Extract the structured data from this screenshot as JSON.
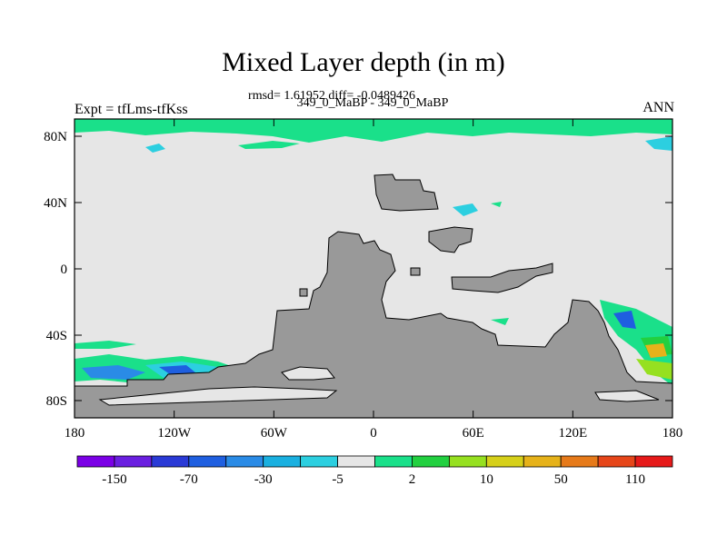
{
  "title": "Mixed Layer depth (in m)",
  "stats_line": "rmsd= 1.61952 diff= -0.0489426",
  "subtitle": "349_0_MaBP - 349_0_MaBP",
  "left_label": "Expt = tfLms-tfKss",
  "right_label": "ANN",
  "axes": {
    "x_ticks": [
      "180",
      "120W",
      "60W",
      "0",
      "60E",
      "120E",
      "180"
    ],
    "y_ticks": [
      "80N",
      "40N",
      "0",
      "40S",
      "80S"
    ]
  },
  "colorbar": {
    "colors": [
      "#7b00e6",
      "#6a1fe0",
      "#2a3ad6",
      "#1f5fe0",
      "#2a8be6",
      "#1ab0e0",
      "#2ccfe0",
      "#e6e6e6",
      "#1ae08a",
      "#22d040",
      "#96e020",
      "#d6d01a",
      "#e6b21a",
      "#e67a1a",
      "#e6461a",
      "#e61a1a"
    ],
    "labels": [
      "-150",
      "-70",
      "-30",
      "-5",
      "2",
      "10",
      "50",
      "110"
    ]
  },
  "colors": {
    "ocean": "#e6e6e6",
    "land": "#999999"
  }
}
